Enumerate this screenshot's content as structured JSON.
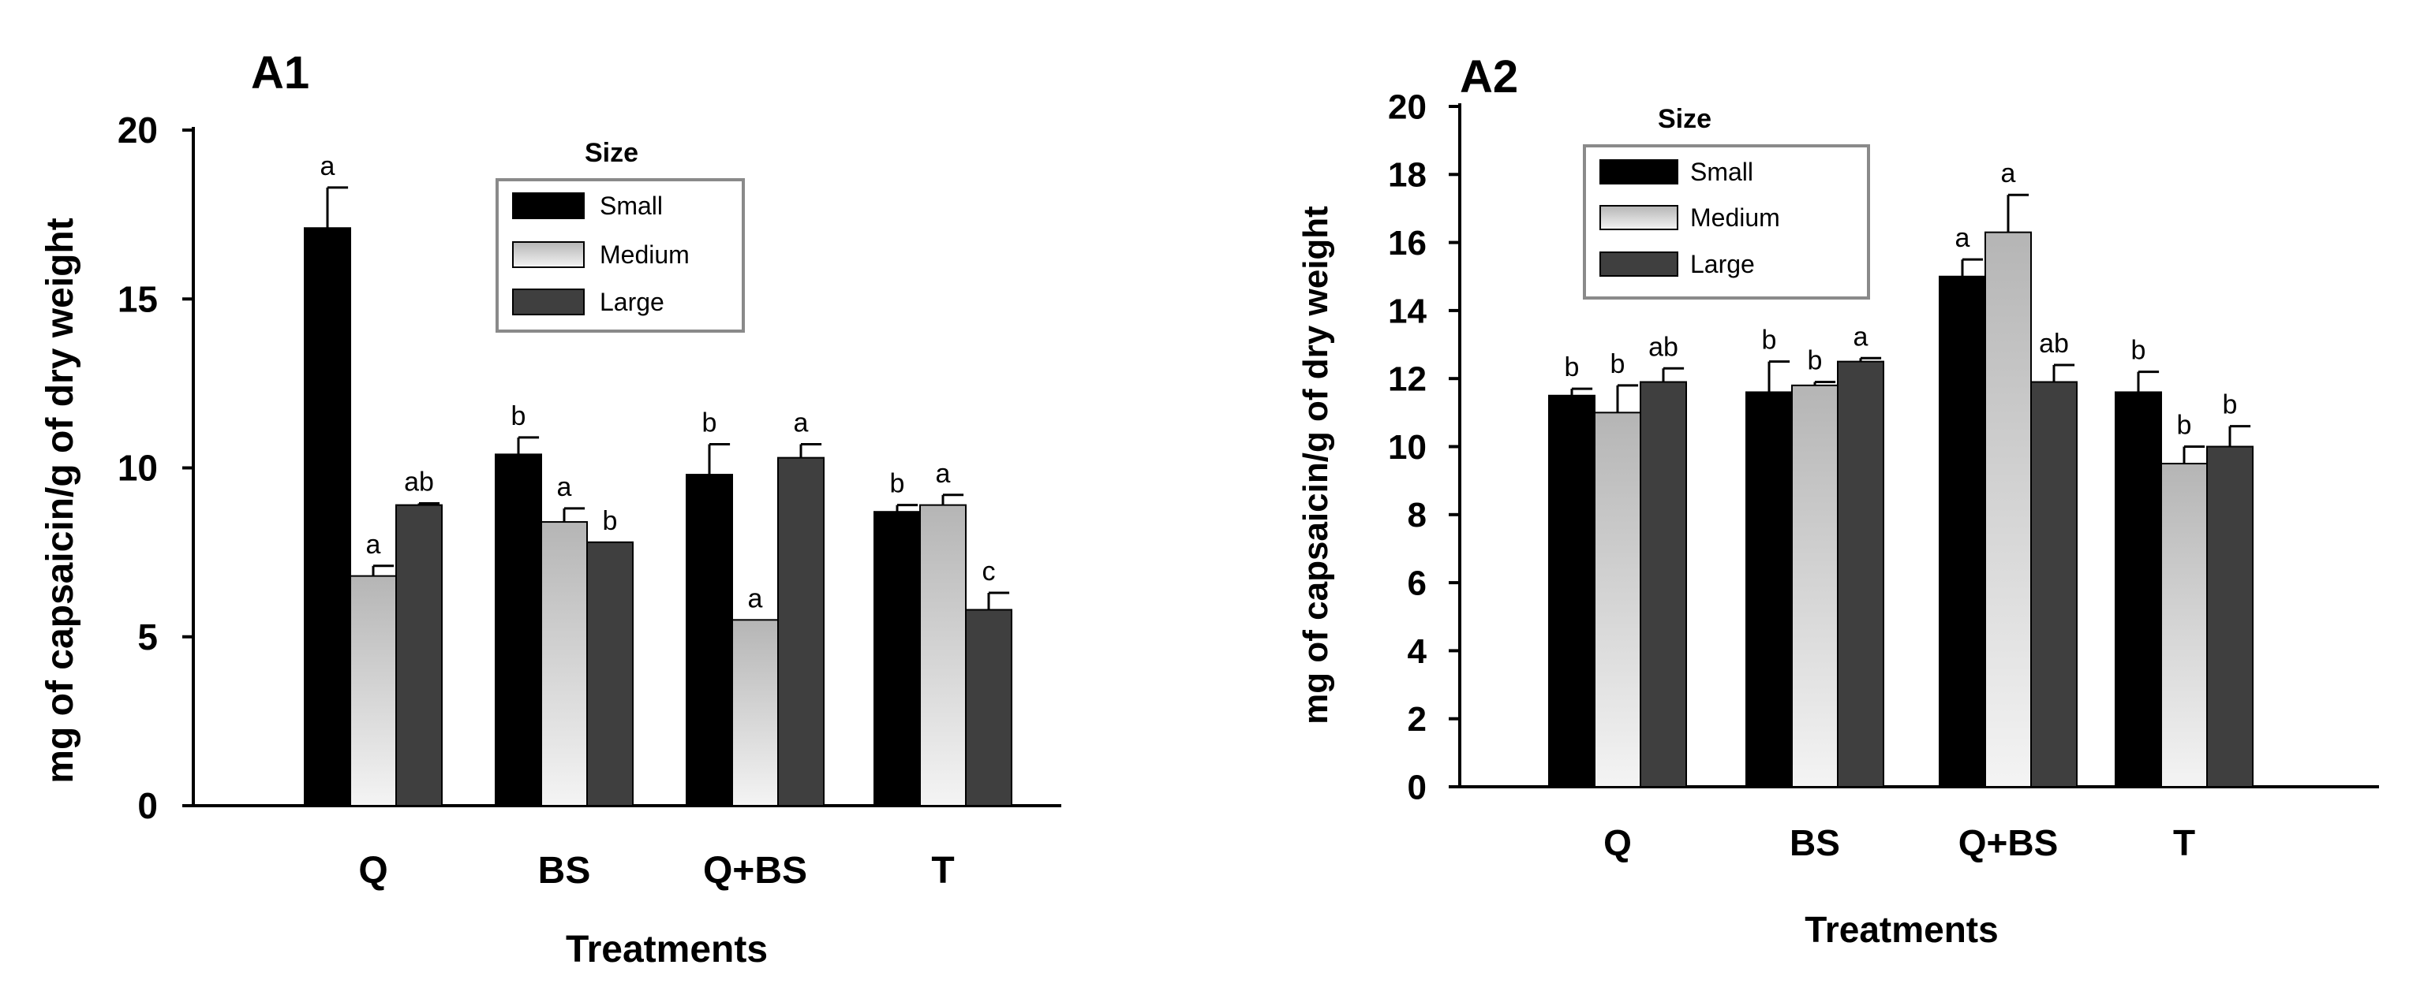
{
  "colors": {
    "small": "#000000",
    "medium_light": "#f4f4f4",
    "medium_dark": "#b5b5b5",
    "large": "#3f3f3f"
  },
  "chart_data": [
    {
      "type": "bar",
      "panel": "A1",
      "title": "",
      "xlabel": "Treatments",
      "ylabel": "mg of capsaicin/g of dry weight",
      "categories": [
        "Q",
        "BS",
        "Q+BS",
        "T"
      ],
      "ylim": [
        0,
        20
      ],
      "yticks": [
        0,
        5,
        10,
        15,
        20
      ],
      "yticks_labels": [
        "0",
        "5",
        "10",
        "15",
        "20"
      ],
      "legend": {
        "title": "Size",
        "position": "top-center",
        "entries": [
          "Small",
          "Medium",
          "Large"
        ]
      },
      "series": [
        {
          "name": "Small",
          "values": [
            17.1,
            10.4,
            9.8,
            8.7
          ],
          "errors": [
            1.2,
            0.5,
            0.9,
            0.2
          ],
          "labels": [
            "a",
            "b",
            "b",
            "b"
          ]
        },
        {
          "name": "Medium",
          "values": [
            6.8,
            8.4,
            5.5,
            8.9
          ],
          "errors": [
            0.3,
            0.4,
            0.0,
            0.3
          ],
          "labels": [
            "a",
            "a",
            "a",
            "a"
          ]
        },
        {
          "name": "Large",
          "values": [
            8.9,
            7.8,
            10.3,
            5.8
          ],
          "errors": [
            0.05,
            0.0,
            0.4,
            0.5
          ],
          "labels": [
            "ab",
            "b",
            "a",
            "c"
          ]
        }
      ]
    },
    {
      "type": "bar",
      "panel": "A2",
      "title": "",
      "xlabel": "Treatments",
      "ylabel": "mg of capsaicin/g of dry weight",
      "categories": [
        "Q",
        "BS",
        "Q+BS",
        "T"
      ],
      "ylim": [
        0,
        20
      ],
      "yticks": [
        0,
        2,
        4,
        6,
        8,
        10,
        12,
        14,
        16,
        18,
        20
      ],
      "yticks_labels": [
        "0",
        "2",
        "4",
        "6",
        "8",
        "10",
        "12",
        "14",
        "16",
        "18",
        "20"
      ],
      "legend": {
        "title": "Size",
        "position": "top-left",
        "entries": [
          "Small",
          "Medium",
          "Large"
        ]
      },
      "series": [
        {
          "name": "Small",
          "values": [
            11.5,
            11.6,
            15.0,
            11.6
          ],
          "errors": [
            0.2,
            0.9,
            0.5,
            0.6
          ],
          "labels": [
            "b",
            "b",
            "a",
            "b"
          ]
        },
        {
          "name": "Medium",
          "values": [
            11.0,
            11.8,
            16.3,
            9.5
          ],
          "errors": [
            0.8,
            0.1,
            1.1,
            0.5
          ],
          "labels": [
            "b",
            "b",
            "a",
            "b"
          ]
        },
        {
          "name": "Large",
          "values": [
            11.9,
            12.5,
            11.9,
            10.0
          ],
          "errors": [
            0.4,
            0.1,
            0.5,
            0.6
          ],
          "labels": [
            "ab",
            "a",
            "ab",
            "b"
          ]
        }
      ]
    }
  ]
}
